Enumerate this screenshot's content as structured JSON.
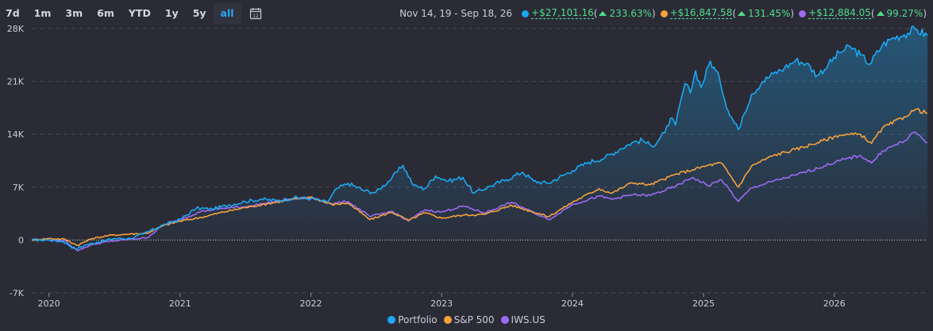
{
  "toolbar": {
    "ranges": [
      "7d",
      "1m",
      "3m",
      "6m",
      "YTD",
      "1y",
      "5y",
      "all"
    ],
    "active": "all",
    "calendar_icon": "calendar-icon",
    "calendar_day": "12"
  },
  "summary": {
    "period": "Nov 14, 19 - Sep 18, 26",
    "items": [
      {
        "color": "#1aa9f2",
        "gain": "+$27,101.16",
        "pct": "233.63%"
      },
      {
        "color": "#f7a13c",
        "gain": "+$16,847.58",
        "pct": "131.45%"
      },
      {
        "color": "#9b6bf2",
        "gain": "+$12,884.05",
        "pct": "99.27%"
      }
    ]
  },
  "chart_data": {
    "type": "line",
    "x_type": "date",
    "x_range": [
      "2019-11-14",
      "2026-09-18"
    ],
    "ylim": [
      -7000,
      28000
    ],
    "y_ticks": [
      -7000,
      0,
      7000,
      14000,
      21000,
      28000
    ],
    "y_tick_labels": [
      "-7K",
      "0",
      "7K",
      "14K",
      "21K",
      "28K"
    ],
    "x_ticks": [
      "2020-01-01",
      "2021-01-01",
      "2022-01-01",
      "2023-01-01",
      "2024-01-01",
      "2025-01-01",
      "2026-01-01"
    ],
    "x_tick_labels": [
      "2020",
      "2021",
      "2022",
      "2023",
      "2024",
      "2025",
      "2026"
    ],
    "grid": "horizontal dashed",
    "legend_position": "bottom-center",
    "series": [
      {
        "name": "Portfolio",
        "color": "#1aa9f2",
        "fill": "area",
        "points": [
          [
            "2019-11-14",
            0
          ],
          [
            "2020-01-01",
            0
          ],
          [
            "2020-02-10",
            -200
          ],
          [
            "2020-03-15",
            -1200
          ],
          [
            "2020-04-10",
            -700
          ],
          [
            "2020-05-15",
            -300
          ],
          [
            "2020-07-01",
            200
          ],
          [
            "2020-08-15",
            200
          ],
          [
            "2020-09-20",
            800
          ],
          [
            "2020-11-15",
            2000
          ],
          [
            "2021-01-01",
            2700
          ],
          [
            "2021-02-15",
            4200
          ],
          [
            "2021-04-01",
            4100
          ],
          [
            "2021-05-15",
            4600
          ],
          [
            "2021-07-01",
            5100
          ],
          [
            "2021-08-15",
            5400
          ],
          [
            "2021-10-01",
            5200
          ],
          [
            "2021-11-15",
            5600
          ],
          [
            "2022-01-01",
            5500
          ],
          [
            "2022-02-15",
            5000
          ],
          [
            "2022-03-15",
            6800
          ],
          [
            "2022-04-15",
            7500
          ],
          [
            "2022-06-01",
            6500
          ],
          [
            "2022-07-01",
            6300
          ],
          [
            "2022-08-15",
            8200
          ],
          [
            "2022-09-15",
            9900
          ],
          [
            "2022-10-15",
            7200
          ],
          [
            "2022-11-15",
            6800
          ],
          [
            "2022-12-15",
            8500
          ],
          [
            "2023-01-20",
            7800
          ],
          [
            "2023-03-01",
            8300
          ],
          [
            "2023-04-01",
            6200
          ],
          [
            "2023-05-15",
            7100
          ],
          [
            "2023-07-01",
            8000
          ],
          [
            "2023-08-15",
            9000
          ],
          [
            "2023-09-15",
            7800
          ],
          [
            "2023-10-25",
            7500
          ],
          [
            "2024-01-01",
            9200
          ],
          [
            "2024-02-15",
            10300
          ],
          [
            "2024-04-01",
            10900
          ],
          [
            "2024-05-15",
            12100
          ],
          [
            "2024-06-15",
            12900
          ],
          [
            "2024-07-15",
            13200
          ],
          [
            "2024-08-10",
            12400
          ],
          [
            "2024-09-15",
            14200
          ],
          [
            "2024-10-01",
            16100
          ],
          [
            "2024-10-15",
            15200
          ],
          [
            "2024-11-10",
            20700
          ],
          [
            "2024-11-25",
            19500
          ],
          [
            "2024-12-10",
            22400
          ],
          [
            "2024-12-25",
            20200
          ],
          [
            "2025-01-20",
            23700
          ],
          [
            "2025-02-15",
            21300
          ],
          [
            "2025-03-10",
            17200
          ],
          [
            "2025-04-08",
            14600
          ],
          [
            "2025-04-20",
            16300
          ],
          [
            "2025-05-15",
            19300
          ],
          [
            "2025-06-15",
            21000
          ],
          [
            "2025-07-15",
            22000
          ],
          [
            "2025-08-15",
            22800
          ],
          [
            "2025-09-15",
            23800
          ],
          [
            "2025-10-15",
            23400
          ],
          [
            "2025-11-15",
            21800
          ],
          [
            "2025-12-15",
            23200
          ],
          [
            "2026-01-15",
            24800
          ],
          [
            "2026-02-15",
            25600
          ],
          [
            "2026-03-15",
            24500
          ],
          [
            "2026-04-10",
            23300
          ],
          [
            "2026-05-15",
            25800
          ],
          [
            "2026-06-15",
            26800
          ],
          [
            "2026-07-15",
            27200
          ],
          [
            "2026-08-15",
            27900
          ],
          [
            "2026-09-18",
            27100
          ]
        ]
      },
      {
        "name": "S&P 500",
        "color": "#f7a13c",
        "points": [
          [
            "2019-11-14",
            0
          ],
          [
            "2020-01-01",
            200
          ],
          [
            "2020-02-15",
            100
          ],
          [
            "2020-03-20",
            -700
          ],
          [
            "2020-05-01",
            200
          ],
          [
            "2020-06-15",
            600
          ],
          [
            "2020-08-15",
            800
          ],
          [
            "2020-10-01",
            900
          ],
          [
            "2020-11-15",
            1900
          ],
          [
            "2021-01-01",
            2500
          ],
          [
            "2021-03-01",
            3000
          ],
          [
            "2021-05-01",
            3700
          ],
          [
            "2021-07-01",
            4300
          ],
          [
            "2021-09-01",
            4800
          ],
          [
            "2021-11-01",
            5300
          ],
          [
            "2022-01-01",
            5700
          ],
          [
            "2022-03-01",
            4700
          ],
          [
            "2022-04-15",
            4900
          ],
          [
            "2022-06-15",
            2700
          ],
          [
            "2022-08-15",
            3700
          ],
          [
            "2022-09-30",
            2600
          ],
          [
            "2022-11-15",
            3600
          ],
          [
            "2023-01-01",
            2900
          ],
          [
            "2023-03-01",
            3300
          ],
          [
            "2023-05-01",
            3400
          ],
          [
            "2023-07-15",
            4600
          ],
          [
            "2023-10-27",
            3100
          ],
          [
            "2024-01-01",
            5000
          ],
          [
            "2024-03-15",
            6800
          ],
          [
            "2024-04-20",
            6200
          ],
          [
            "2024-06-15",
            7600
          ],
          [
            "2024-08-05",
            7300
          ],
          [
            "2024-10-15",
            8700
          ],
          [
            "2024-12-01",
            9300
          ],
          [
            "2025-01-15",
            9900
          ],
          [
            "2025-02-20",
            10200
          ],
          [
            "2025-04-08",
            7000
          ],
          [
            "2025-05-15",
            9800
          ],
          [
            "2025-07-15",
            11200
          ],
          [
            "2025-09-15",
            12000
          ],
          [
            "2025-11-15",
            12900
          ],
          [
            "2026-01-15",
            13900
          ],
          [
            "2026-03-15",
            14000
          ],
          [
            "2026-04-15",
            12800
          ],
          [
            "2026-05-15",
            14800
          ],
          [
            "2026-07-15",
            16300
          ],
          [
            "2026-08-15",
            17300
          ],
          [
            "2026-09-18",
            16800
          ]
        ]
      },
      {
        "name": "IWS.US",
        "color": "#9b6bf2",
        "points": [
          [
            "2019-11-14",
            0
          ],
          [
            "2020-01-01",
            0
          ],
          [
            "2020-02-15",
            -100
          ],
          [
            "2020-03-20",
            -1400
          ],
          [
            "2020-05-01",
            -600
          ],
          [
            "2020-06-15",
            -200
          ],
          [
            "2020-08-15",
            100
          ],
          [
            "2020-10-01",
            300
          ],
          [
            "2020-11-15",
            2000
          ],
          [
            "2021-01-01",
            2700
          ],
          [
            "2021-03-01",
            3800
          ],
          [
            "2021-05-01",
            4200
          ],
          [
            "2021-07-01",
            4400
          ],
          [
            "2021-09-01",
            4900
          ],
          [
            "2021-11-01",
            5400
          ],
          [
            "2022-01-01",
            5600
          ],
          [
            "2022-03-01",
            4800
          ],
          [
            "2022-04-15",
            5100
          ],
          [
            "2022-06-15",
            3100
          ],
          [
            "2022-08-15",
            3800
          ],
          [
            "2022-09-30",
            2500
          ],
          [
            "2022-11-15",
            4000
          ],
          [
            "2023-01-01",
            3700
          ],
          [
            "2023-03-01",
            4500
          ],
          [
            "2023-05-01",
            3600
          ],
          [
            "2023-07-15",
            5000
          ],
          [
            "2023-10-27",
            2700
          ],
          [
            "2024-01-01",
            4700
          ],
          [
            "2024-03-15",
            5800
          ],
          [
            "2024-04-20",
            5400
          ],
          [
            "2024-06-15",
            6000
          ],
          [
            "2024-08-05",
            5900
          ],
          [
            "2024-10-15",
            7100
          ],
          [
            "2024-12-01",
            8300
          ],
          [
            "2025-01-15",
            7200
          ],
          [
            "2025-02-20",
            8000
          ],
          [
            "2025-04-08",
            5100
          ],
          [
            "2025-05-15",
            6900
          ],
          [
            "2025-07-15",
            7800
          ],
          [
            "2025-09-15",
            8600
          ],
          [
            "2025-11-15",
            9500
          ],
          [
            "2026-01-15",
            10500
          ],
          [
            "2026-03-15",
            11200
          ],
          [
            "2026-04-15",
            10200
          ],
          [
            "2026-05-15",
            11800
          ],
          [
            "2026-07-15",
            13100
          ],
          [
            "2026-08-15",
            14300
          ],
          [
            "2026-09-18",
            12900
          ]
        ]
      }
    ]
  }
}
